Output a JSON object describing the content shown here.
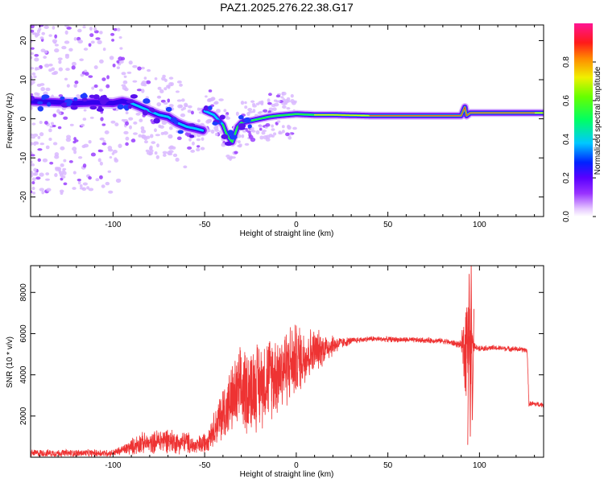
{
  "title": "PAZ1.2025.276.22.38.G17",
  "chart_data": [
    {
      "type": "heatmap",
      "title": "PAZ1.2025.276.22.38.G17",
      "xlabel": "Height of straight line (km)",
      "ylabel": "Frequency (Hz)",
      "xlim": [
        -145,
        135
      ],
      "ylim": [
        -25,
        24
      ],
      "xticks": [
        -100,
        -50,
        0,
        50,
        100
      ],
      "yticks": [
        -20,
        -10,
        0,
        10,
        20
      ],
      "ridge": {
        "x": [
          -145,
          -135,
          -120,
          -110,
          -100,
          -95,
          -90,
          -85,
          -80,
          -75,
          -70,
          -65,
          -60,
          -55,
          -51,
          -50,
          -45,
          -40,
          -38,
          -35,
          -32,
          -30,
          -25,
          -20,
          -15,
          -10,
          -5,
          0,
          10,
          20,
          40,
          60,
          80,
          90,
          92,
          93,
          95,
          100,
          110,
          120,
          135
        ],
        "y": [
          4.5,
          4.3,
          4.0,
          4.2,
          4.0,
          4.5,
          4.0,
          3.0,
          2.0,
          1.0,
          0.5,
          -1.0,
          -2.0,
          -2.5,
          -3.0,
          2.0,
          1.0,
          -1.5,
          -4.0,
          -6.0,
          -2.0,
          -1.0,
          -0.5,
          0.0,
          0.5,
          0.8,
          1.0,
          1.2,
          1.0,
          1.0,
          0.8,
          0.8,
          0.8,
          0.8,
          3.0,
          0.8,
          1.5,
          1.5,
          1.5,
          1.5,
          1.5
        ]
      },
      "colorbar": {
        "label": "Normalized spectral amplitude",
        "range": [
          0,
          1
        ],
        "ticks": [
          "0.0",
          "0.2",
          "0.4",
          "0.6",
          "0.8"
        ]
      }
    },
    {
      "type": "line",
      "xlabel": "Height of straight line (km)",
      "ylabel": "SNR (10 * v/v)",
      "xlim": [
        -145,
        135
      ],
      "ylim": [
        0,
        9300
      ],
      "xticks": [
        -100,
        -50,
        0,
        50,
        100
      ],
      "yticks": [
        2000,
        4000,
        6000,
        8000
      ],
      "series": [
        {
          "name": "SNR",
          "color": "#ee3333",
          "x": [
            -145,
            -100,
            -95,
            -90,
            -85,
            -80,
            -75,
            -70,
            -65,
            -60,
            -55,
            -50,
            -45,
            -40,
            -35,
            -30,
            -25,
            -20,
            -15,
            -10,
            -5,
            0,
            5,
            10,
            15,
            20,
            25,
            30,
            35,
            40,
            60,
            80,
            90,
            92,
            94,
            95,
            96,
            98,
            100,
            110,
            120,
            126,
            127,
            135
          ],
          "y": [
            200,
            200,
            350,
            500,
            700,
            650,
            800,
            850,
            700,
            750,
            500,
            700,
            1400,
            2100,
            2800,
            3200,
            3400,
            3550,
            3900,
            4150,
            4500,
            4700,
            4950,
            5150,
            5300,
            5450,
            5550,
            5650,
            5700,
            5750,
            5700,
            5650,
            5450,
            5100,
            6500,
            5000,
            5500,
            5300,
            5300,
            5300,
            5250,
            5200,
            2600,
            2550
          ],
          "noise": [
            200,
            200,
            250,
            450,
            600,
            500,
            700,
            700,
            600,
            600,
            500,
            600,
            900,
            1600,
            1900,
            2400,
            2400,
            2400,
            2300,
            2300,
            2200,
            2000,
            1600,
            1200,
            900,
            600,
            300,
            200,
            150,
            150,
            150,
            150,
            200,
            2800,
            3000,
            3000,
            600,
            150,
            150,
            150,
            150,
            150,
            150,
            150
          ],
          "spikes": [
            {
              "x": 93.6,
              "y": 600
            },
            {
              "x": 94.4,
              "y": 8900
            },
            {
              "x": 95.0,
              "y": 1000
            },
            {
              "x": 95.5,
              "y": 9300
            },
            {
              "x": 96.1,
              "y": 1800
            },
            {
              "x": 97.0,
              "y": 7200
            }
          ]
        }
      ]
    }
  ]
}
